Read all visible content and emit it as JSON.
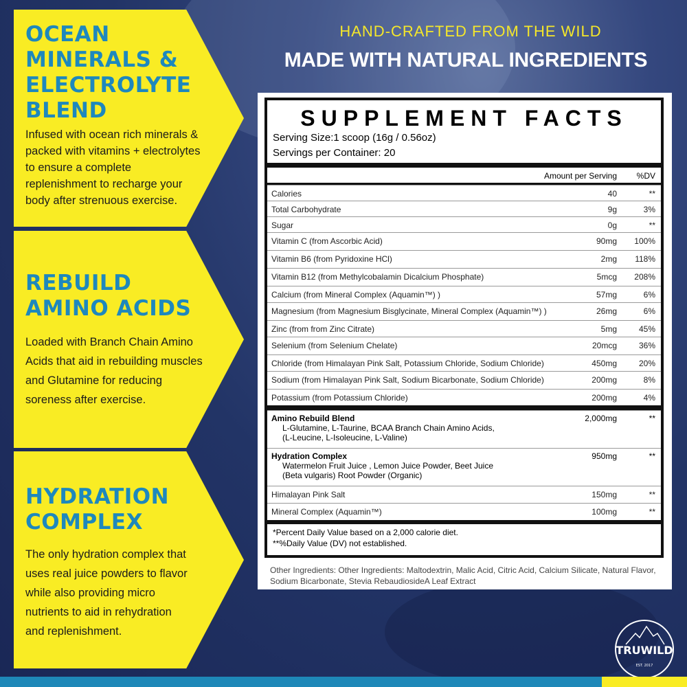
{
  "colors": {
    "yellow": "#f9ec24",
    "heading_blue": "#1e88bd",
    "navy": "#1d2b5c"
  },
  "panels": [
    {
      "title": [
        "OCEAN",
        "MINERALS &",
        "ELECTROLYTE",
        "BLEND"
      ],
      "body": [
        "Infused with ocean rich minerals &",
        "packed with vitamins + electrolytes",
        "to ensure a complete",
        "replenishment to recharge your",
        "body after strenuous exercise."
      ]
    },
    {
      "title": [
        "REBUILD",
        "AMINO ACIDS"
      ],
      "body": [
        "Loaded with Branch Chain Amino",
        "Acids that aid in rebuilding muscles",
        "and Glutamine for reducing",
        "soreness after exercise."
      ]
    },
    {
      "title": [
        "HYDRATION",
        "COMPLEX"
      ],
      "body": [
        "The only hydration complex that",
        "uses real juice powders to flavor",
        "while also providing micro",
        "nutrients to aid in rehydration",
        "and replenishment."
      ]
    }
  ],
  "header": {
    "tagline": "HAND-CRAFTED FROM THE WILD",
    "headline": "MADE WITH NATURAL INGREDIENTS"
  },
  "facts": {
    "title": "SUPPLEMENT FACTS",
    "serving_size": "Serving Size:1 scoop (16g / 0.56oz)",
    "servings": "Servings per Container: 20",
    "col_amount": "Amount per Serving",
    "col_dv": "%DV",
    "rows": [
      [
        "Calories",
        "40",
        "**"
      ],
      [
        "Total Carbohydrate",
        "9g",
        "3%"
      ],
      [
        "Sugar",
        "0g",
        "**"
      ],
      [
        "Vitamin C (from Ascorbic Acid)",
        "90mg",
        "100%"
      ],
      [
        "Vitamin B6 (from Pyridoxine HCl)",
        "2mg",
        "118%"
      ],
      [
        "Vitamin B12 (from Methylcobalamin Dicalcium Phosphate)",
        "5mcg",
        "208%"
      ],
      [
        "Calcium (from Mineral Complex (Aquamin™) )",
        "57mg",
        "6%"
      ],
      [
        "Magnesium (from Magnesium Bisglycinate, Mineral Complex (Aquamin™) )",
        "26mg",
        "6%"
      ],
      [
        "Zinc (from from Zinc Citrate)",
        "5mg",
        "45%"
      ],
      [
        "Selenium (from Selenium Chelate)",
        "20mcg",
        "36%"
      ],
      [
        "Chloride (from Himalayan Pink Salt, Potassium Chloride, Sodium Chloride)",
        "450mg",
        "20%"
      ],
      [
        "Sodium (from Himalayan Pink Salt, Sodium Bicarbonate, Sodium Chloride)",
        "200mg",
        "8%"
      ],
      [
        "Potassium (from Potassium Chloride)",
        "200mg",
        "4%"
      ]
    ],
    "blends": [
      {
        "name": "Amino Rebuild Blend",
        "sub": [
          "L-Glutamine, L-Taurine, BCAA Branch Chain Amino Acids,",
          "(L-Leucine, L-Isoleucine, L-Valine)"
        ],
        "amount": "2,000mg",
        "dv": "**"
      },
      {
        "name": "Hydration Complex",
        "sub": [
          "Watermelon Fruit Juice , Lemon Juice Powder, Beet Juice",
          "(Beta vulgaris) Root Powder (Organic)"
        ],
        "amount": "950mg",
        "dv": "**"
      }
    ],
    "extra_rows": [
      [
        "Himalayan Pink Salt",
        "150mg",
        "**"
      ],
      [
        "Mineral Complex (Aquamin™)",
        "100mg",
        "**"
      ]
    ],
    "footnote1": "*Percent Daily Value based on a 2,000 calorie diet.",
    "footnote2": "**%Daily Value (DV) not established.",
    "other": "Other Ingredients: Other Ingredients: Maltodextrin, Malic Acid, Citric Acid, Calcium Silicate, Natural Flavor, Sodium Bicarbonate, Stevia RebaudiosideA Leaf Extract"
  },
  "logo": {
    "brand": "TRUWILD",
    "est": "EST. 2017"
  }
}
